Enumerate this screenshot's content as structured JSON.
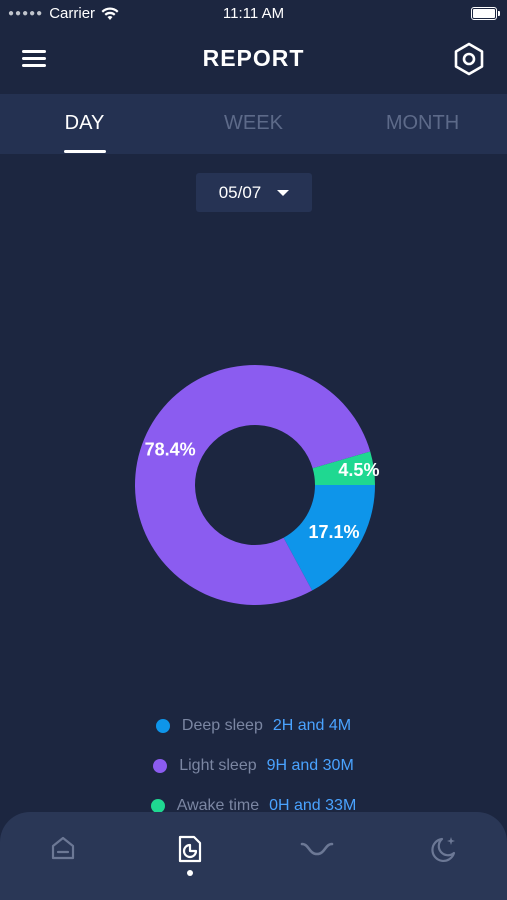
{
  "status_bar": {
    "carrier": "Carrier",
    "time": "11:11 AM"
  },
  "header": {
    "title": "REPORT",
    "menu_icon": "hamburger-menu-icon",
    "settings_icon": "hexagon-settings-icon"
  },
  "tabs": [
    {
      "label": "DAY",
      "active": true
    },
    {
      "label": "WEEK",
      "active": false
    },
    {
      "label": "MONTH",
      "active": false
    }
  ],
  "date_selector": {
    "value": "05/07"
  },
  "chart_data": {
    "type": "pie",
    "donut": true,
    "slices": [
      {
        "label": "Deep sleep",
        "value": 17.1,
        "display": "17.1%",
        "color": "#0e95ea"
      },
      {
        "label": "Light sleep",
        "value": 78.4,
        "display": "78.4%",
        "color": "#8b5cf0"
      },
      {
        "label": "Awake time",
        "value": 4.5,
        "display": "4.5%",
        "color": "#1fd891"
      }
    ]
  },
  "legend": [
    {
      "label": "Deep sleep",
      "value": "2H and 4M",
      "color": "#0e95ea"
    },
    {
      "label": "Light sleep",
      "value": "9H and 30M",
      "color": "#8b5cf0"
    },
    {
      "label": "Awake time",
      "value": "0H and 33M",
      "color": "#1fd891"
    }
  ],
  "bottom_nav": [
    {
      "icon": "home-icon",
      "active": false
    },
    {
      "icon": "report-icon",
      "active": true
    },
    {
      "icon": "sleep-curve-icon",
      "active": false
    },
    {
      "icon": "moon-stars-icon",
      "active": false
    }
  ]
}
